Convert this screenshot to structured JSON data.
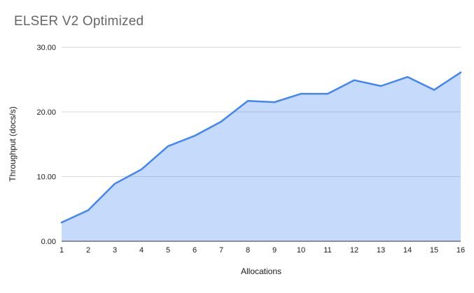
{
  "window": {
    "title": "ELSER V2 Optimized"
  },
  "colors": {
    "line": "#4285f4",
    "fill": "rgba(66,133,244,0.30)",
    "grid": "#d9d9d9",
    "axis": "#333333",
    "title_text": "#666666",
    "tick_text": "#1a1a1a"
  },
  "chart_data": {
    "type": "area",
    "title": "ELSER V2 Optimized",
    "xlabel": "Allocations",
    "ylabel": "Throughput (docs/s)",
    "x": [
      1,
      2,
      3,
      4,
      5,
      6,
      7,
      8,
      9,
      10,
      11,
      12,
      13,
      14,
      15,
      16
    ],
    "values": [
      2.9,
      4.8,
      8.9,
      11.1,
      14.7,
      16.3,
      18.5,
      21.7,
      21.5,
      22.8,
      22.8,
      24.9,
      24.0,
      25.4,
      23.4,
      26.1
    ],
    "series_name": "Throughput (docs/s)",
    "ylim": [
      0,
      30
    ],
    "yticks": [
      0,
      10,
      20,
      30
    ],
    "ytick_labels": [
      "0.00",
      "10.00",
      "20.00",
      "30.00"
    ],
    "xtick_labels": [
      "1",
      "2",
      "3",
      "4",
      "5",
      "6",
      "7",
      "8",
      "9",
      "10",
      "11",
      "12",
      "13",
      "14",
      "15",
      "16"
    ],
    "grid": true,
    "legend_position": "none"
  }
}
